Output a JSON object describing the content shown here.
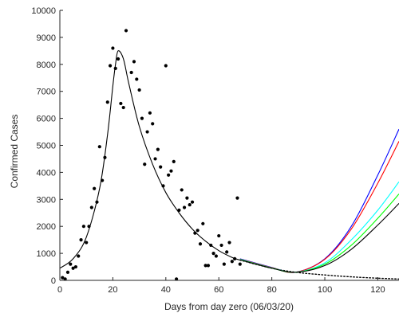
{
  "chart_data": {
    "type": "scatter",
    "title": "",
    "xlabel": "Days from day zero (06/03/20)",
    "ylabel": "Confirmed Cases",
    "xlim": [
      0,
      128
    ],
    "ylim": [
      0,
      10000
    ],
    "xticks": [
      0,
      20,
      40,
      60,
      80,
      100,
      120
    ],
    "yticks": [
      0,
      1000,
      2000,
      3000,
      4000,
      5000,
      6000,
      7000,
      8000,
      9000,
      10000
    ],
    "grid": false,
    "legend": "none",
    "points": [
      [
        1,
        100
      ],
      [
        2,
        50
      ],
      [
        3,
        300
      ],
      [
        4,
        600
      ],
      [
        5,
        450
      ],
      [
        6,
        500
      ],
      [
        7,
        900
      ],
      [
        8,
        1500
      ],
      [
        9,
        2000
      ],
      [
        10,
        1400
      ],
      [
        11,
        2000
      ],
      [
        12,
        2700
      ],
      [
        13,
        3400
      ],
      [
        14,
        2900
      ],
      [
        15,
        4950
      ],
      [
        16,
        3700
      ],
      [
        17,
        4550
      ],
      [
        18,
        6600
      ],
      [
        19,
        7950
      ],
      [
        20,
        8600
      ],
      [
        21,
        7850
      ],
      [
        22,
        8200
      ],
      [
        23,
        6550
      ],
      [
        24,
        6400
      ],
      [
        25,
        9250
      ],
      [
        27,
        7700
      ],
      [
        28,
        8100
      ],
      [
        29,
        7450
      ],
      [
        30,
        7050
      ],
      [
        31,
        6000
      ],
      [
        32,
        4300
      ],
      [
        33,
        5500
      ],
      [
        34,
        6200
      ],
      [
        35,
        5800
      ],
      [
        36,
        4500
      ],
      [
        37,
        4850
      ],
      [
        38,
        4200
      ],
      [
        39,
        3500
      ],
      [
        40,
        7950
      ],
      [
        41,
        3900
      ],
      [
        42,
        4050
      ],
      [
        43,
        4400
      ],
      [
        44,
        50
      ],
      [
        45,
        2600
      ],
      [
        46,
        3350
      ],
      [
        47,
        2700
      ],
      [
        48,
        3050
      ],
      [
        49,
        2800
      ],
      [
        50,
        2900
      ],
      [
        51,
        1750
      ],
      [
        52,
        1850
      ],
      [
        53,
        1350
      ],
      [
        54,
        2100
      ],
      [
        55,
        550
      ],
      [
        56,
        550
      ],
      [
        57,
        1300
      ],
      [
        58,
        1000
      ],
      [
        59,
        900
      ],
      [
        60,
        1650
      ],
      [
        61,
        1300
      ],
      [
        62,
        600
      ],
      [
        63,
        1050
      ],
      [
        64,
        1400
      ],
      [
        65,
        700
      ],
      [
        66,
        800
      ],
      [
        67,
        3050
      ],
      [
        68,
        600
      ]
    ],
    "series": [
      {
        "color": "#000000",
        "style": "solid",
        "x": [
          0,
          5,
          10,
          15,
          18,
          20,
          21,
          22,
          24,
          26,
          30,
          35,
          40,
          45,
          50,
          55,
          60,
          65,
          68
        ],
        "y": [
          450,
          800,
          1600,
          3400,
          5400,
          7200,
          8000,
          8500,
          8200,
          7300,
          5700,
          4300,
          3250,
          2500,
          1900,
          1450,
          1100,
          850,
          750
        ]
      },
      {
        "color": "#000000",
        "style": "dotted",
        "x": [
          68,
          80,
          89,
          100,
          110,
          120,
          128
        ],
        "y": [
          750,
          450,
          300,
          200,
          130,
          80,
          50
        ]
      },
      {
        "color": "#0000ff",
        "style": "solid",
        "x": [
          68,
          80,
          89,
          100,
          110,
          120,
          128
        ],
        "y": [
          800,
          480,
          300,
          800,
          2000,
          3900,
          5600
        ]
      },
      {
        "color": "#ff0000",
        "style": "solid",
        "x": [
          68,
          80,
          89,
          100,
          110,
          120,
          128
        ],
        "y": [
          790,
          470,
          300,
          780,
          1900,
          3600,
          5150
        ]
      },
      {
        "color": "#00ffff",
        "style": "solid",
        "x": [
          68,
          80,
          89,
          100,
          110,
          120,
          128
        ],
        "y": [
          780,
          460,
          300,
          650,
          1500,
          2600,
          3650
        ]
      },
      {
        "color": "#00ff00",
        "style": "solid",
        "x": [
          68,
          80,
          89,
          100,
          110,
          120,
          128
        ],
        "y": [
          770,
          455,
          300,
          600,
          1300,
          2300,
          3200
        ]
      },
      {
        "color": "#000000",
        "style": "solid",
        "x": [
          68,
          80,
          89,
          100,
          110,
          120,
          128
        ],
        "y": [
          760,
          450,
          300,
          550,
          1150,
          2050,
          2850
        ]
      }
    ]
  }
}
